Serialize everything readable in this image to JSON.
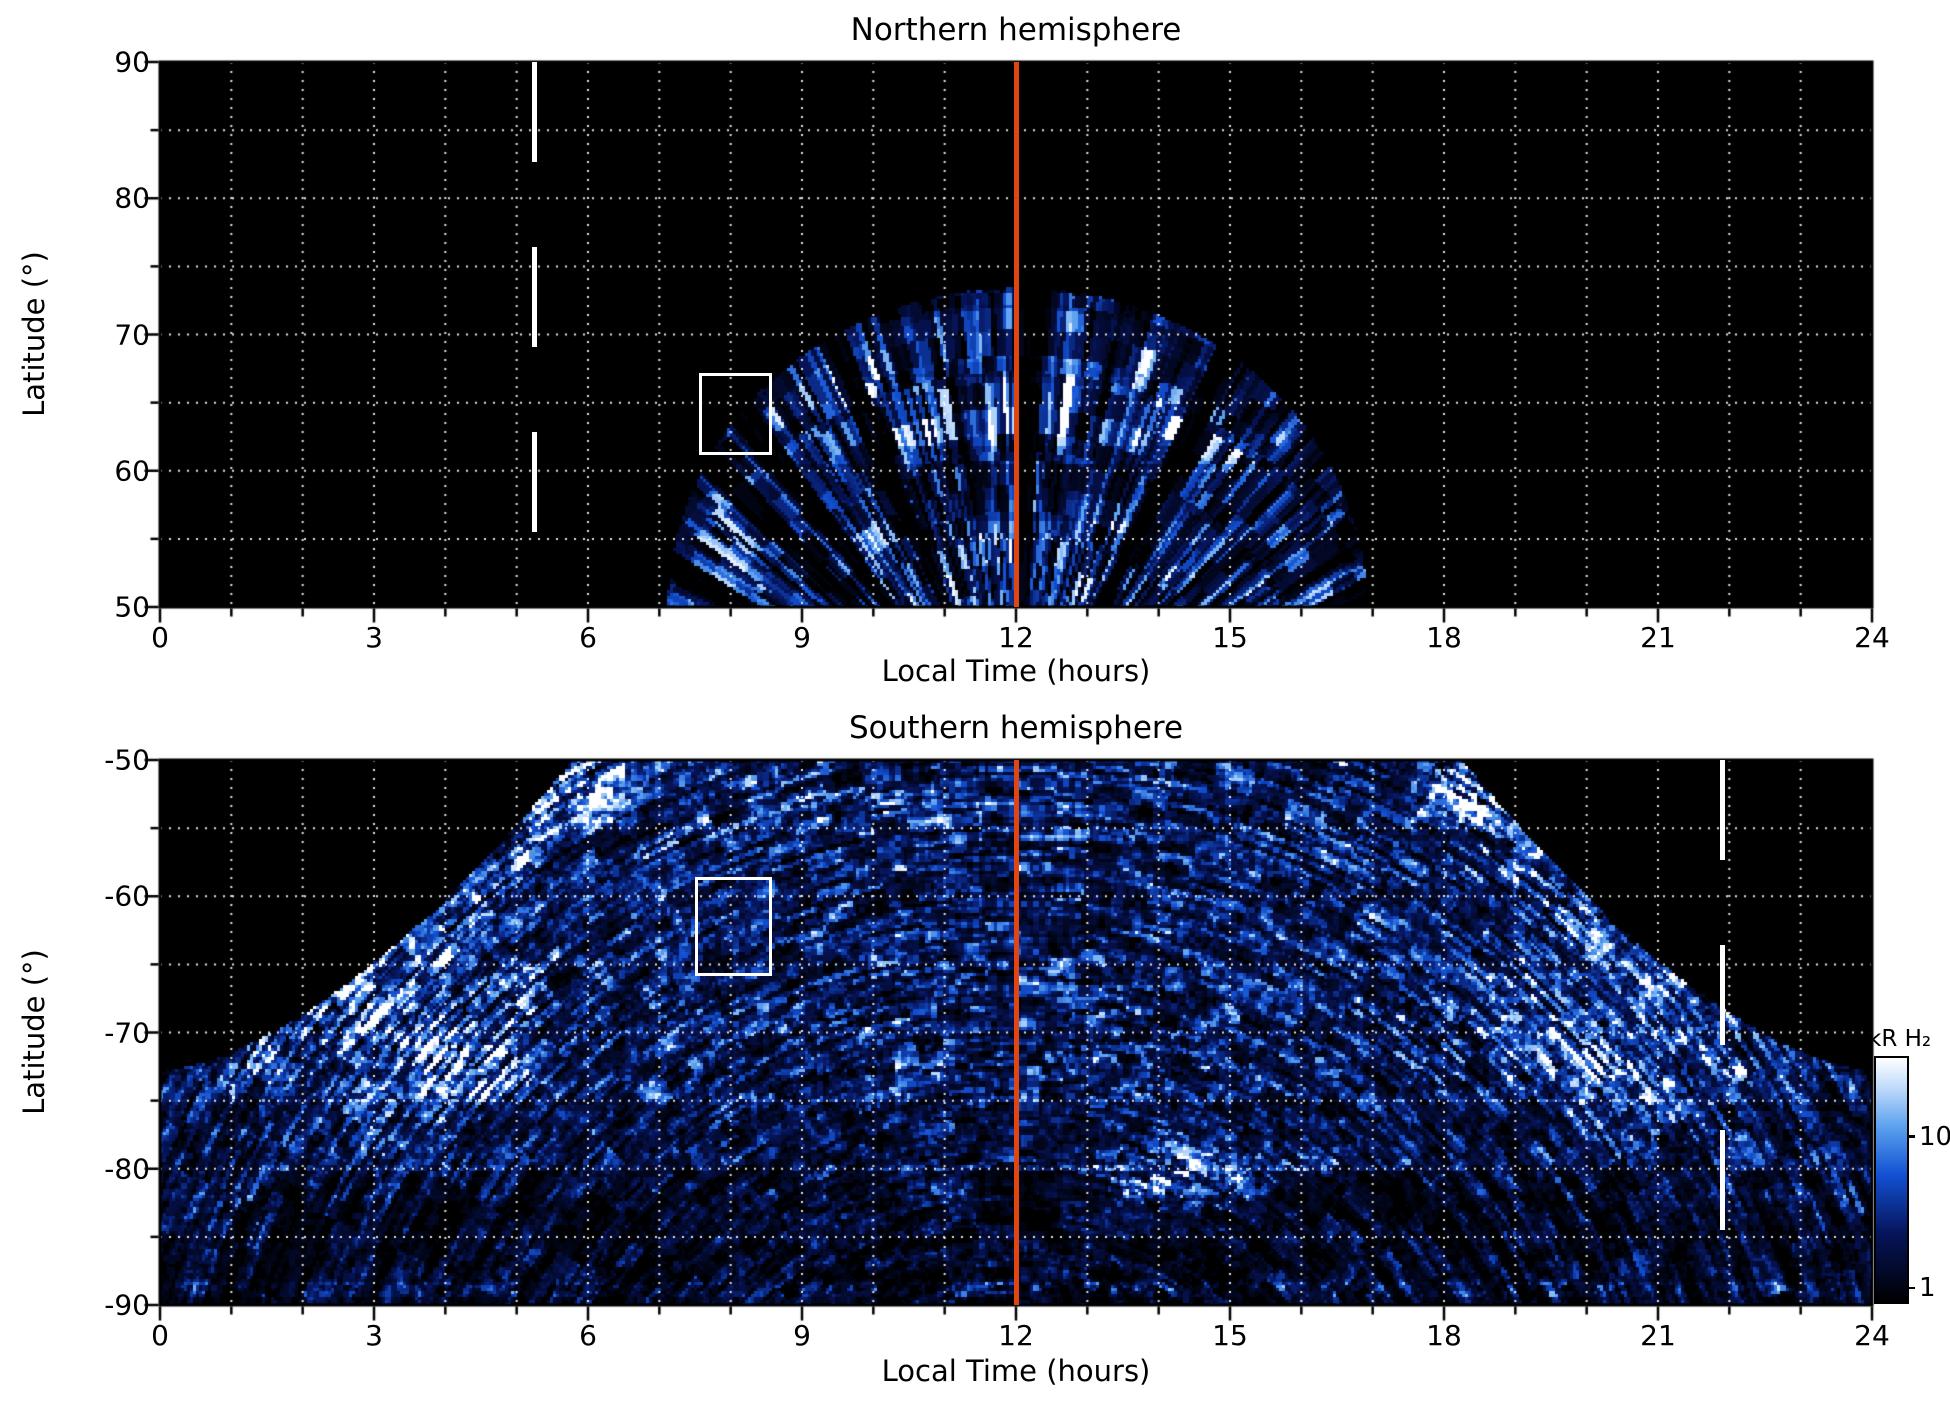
{
  "figure": {
    "background": "#ffffff"
  },
  "chart_data": [
    {
      "type": "heatmap",
      "panel": "northern",
      "title": "Northern hemisphere",
      "xlabel": "Local Time (hours)",
      "ylabel": "Latitude (°)",
      "xlim": [
        0,
        24
      ],
      "ylim": [
        50,
        90
      ],
      "xticks": [
        0,
        3,
        6,
        9,
        12,
        15,
        18,
        21,
        24
      ],
      "yticks": [
        90,
        80,
        70,
        60,
        50
      ],
      "grid": {
        "x_step_hours": 1,
        "y_step_degrees": 5,
        "style": "dotted"
      },
      "markers": {
        "noon_line_lt": 12,
        "dashed_line_lt": 5.25,
        "roi_box": {
          "lt": [
            7.55,
            8.5
          ],
          "lat": [
            61.6,
            67.2
          ]
        }
      },
      "emission": {
        "description": "Speckled blue auroral H2 emission fan centred on local noon",
        "lt_extent": [
          7.1,
          16.9
        ],
        "lat_extent": [
          50,
          73.5
        ],
        "lt_center": 12,
        "fan_halfwidth_hours": 4.9,
        "fan_height_degrees": 23.5,
        "texture": "radial_streaks",
        "bright_band": {
          "lt": [
            9.5,
            14.5
          ],
          "lat": [
            62,
            67
          ]
        },
        "dark_arc": {
          "lt": [
            8.5,
            15.5
          ],
          "lat": [
            56.5,
            60.5
          ]
        }
      }
    },
    {
      "type": "heatmap",
      "panel": "southern",
      "title": "Southern hemisphere",
      "xlabel": "Local Time (hours)",
      "ylabel": "Latitude (°)",
      "xlim": [
        0,
        24
      ],
      "ylim": [
        -90,
        -50
      ],
      "xticks": [
        0,
        3,
        6,
        9,
        12,
        15,
        18,
        21,
        24
      ],
      "yticks": [
        -50,
        -60,
        -70,
        -80,
        -90
      ],
      "grid": {
        "x_step_hours": 1,
        "y_step_degrees": 5,
        "style": "dotted"
      },
      "markers": {
        "noon_line_lt": 12,
        "dashed_line_lt": 21.9,
        "roi_box": {
          "lt": [
            7.5,
            8.5
          ],
          "lat": [
            -58.6,
            -65.4
          ]
        }
      },
      "emission": {
        "description": "Widespread speckled auroral H2 emission swaths over the southern polar region, bounded by bright curved arcs on the dawn and dusk flanks",
        "boundary": {
          "lat_at_lt0": -73,
          "lat_at_dawn": -50,
          "dawn_lt": 5.8,
          "dusk_lt": 18.2,
          "exponent": 1.6
        },
        "texture": "tangential_arc_swaths",
        "arc_center_lt": 12,
        "bright_spots": [
          {
            "lt": 4.1,
            "lat": -71.5,
            "rx": 1.1,
            "ry": 3.2,
            "a": 1.5
          },
          {
            "lt": 3.1,
            "lat": -77.0,
            "rx": 1.0,
            "ry": 2.6,
            "a": 0.9
          },
          {
            "lt": 5.0,
            "lat": -66.5,
            "rx": 0.8,
            "ry": 2.2,
            "a": 0.7
          },
          {
            "lt": 19.8,
            "lat": -71.5,
            "rx": 1.1,
            "ry": 3.2,
            "a": 1.4
          },
          {
            "lt": 20.9,
            "lat": -76.5,
            "rx": 1.0,
            "ry": 2.6,
            "a": 0.8
          },
          {
            "lt": 19.0,
            "lat": -66.0,
            "rx": 0.8,
            "ry": 2.2,
            "a": 0.6
          },
          {
            "lt": 14.8,
            "lat": -80.0,
            "rx": 1.5,
            "ry": 2.3,
            "a": 1.2
          },
          {
            "lt": 13.5,
            "lat": -81.5,
            "rx": 1.0,
            "ry": 1.8,
            "a": 0.7
          },
          {
            "lt": 5.9,
            "lat": -51.5,
            "rx": 0.7,
            "ry": 2.0,
            "a": 1.0
          },
          {
            "lt": 18.5,
            "lat": -52.0,
            "rx": 0.6,
            "ry": 1.8,
            "a": 0.7
          },
          {
            "lt": 0.8,
            "lat": -83.5,
            "rx": 0.9,
            "ry": 2.5,
            "a": 0.6
          },
          {
            "lt": 23.2,
            "lat": -83.0,
            "rx": 0.9,
            "ry": 2.5,
            "a": 0.5
          },
          {
            "lt": 10.3,
            "lat": -52.0,
            "rx": 1.2,
            "ry": 1.5,
            "a": 0.35
          },
          {
            "lt": 7.8,
            "lat": -54.0,
            "rx": 1.2,
            "ry": 1.5,
            "a": 0.3
          }
        ]
      }
    }
  ],
  "colorbar": {
    "label": "kR H₂",
    "scale": "log",
    "ticks": [
      {
        "label": "10",
        "frac_from_bottom": 0.67
      },
      {
        "label": "1",
        "frac_from_bottom": 0.05
      }
    ],
    "colormap_stops": [
      {
        "t": 0,
        "c": "#000000"
      },
      {
        "t": 0.28,
        "c": "#06145a"
      },
      {
        "t": 0.52,
        "c": "#1250d2"
      },
      {
        "t": 0.72,
        "c": "#5ca2ee"
      },
      {
        "t": 0.87,
        "c": "#bad8fa"
      },
      {
        "t": 1,
        "c": "#ffffff"
      }
    ]
  },
  "colors": {
    "noon_line": "#e04612",
    "dashed_line": "#ffffff",
    "grid_dots": "#ffffff",
    "roi_box": "#ffffff",
    "plot_background": "#000000",
    "axis": "#000000"
  }
}
